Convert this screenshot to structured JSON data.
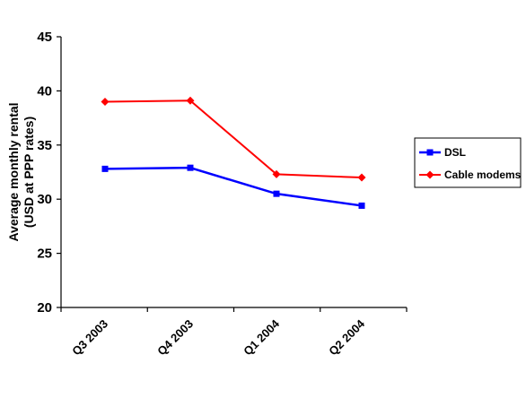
{
  "chart_data": {
    "type": "line",
    "categories": [
      "Q3 2003",
      "Q4 2003",
      "Q1 2004",
      "Q2 2004"
    ],
    "ylabel_lines": [
      "Average monthly rental",
      "(USD at PPP rates)"
    ],
    "ylim": [
      20,
      45
    ],
    "yticks": [
      20,
      25,
      30,
      35,
      40,
      45
    ],
    "grid": false,
    "legend_position": "right",
    "series": [
      {
        "name": "DSL",
        "color": "#0000FF",
        "marker": "square",
        "values": [
          32.8,
          32.9,
          30.5,
          29.4
        ]
      },
      {
        "name": "Cable modems",
        "color": "#FF0000",
        "marker": "diamond",
        "values": [
          39.0,
          39.1,
          32.3,
          32.0
        ]
      }
    ]
  }
}
